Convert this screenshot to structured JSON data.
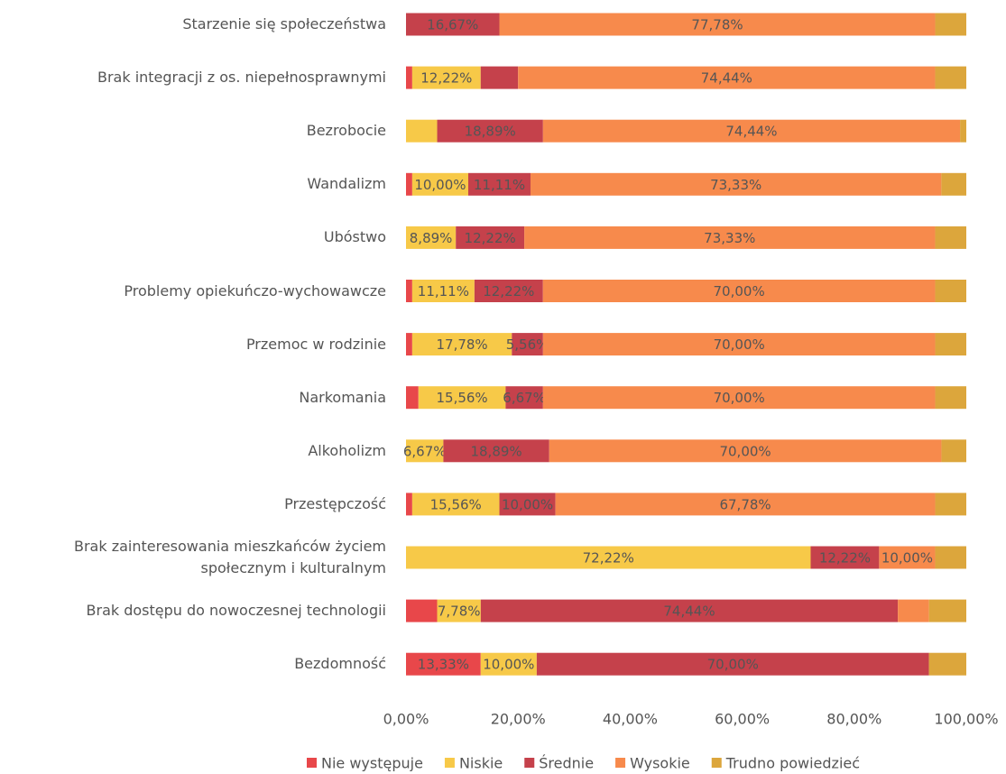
{
  "chart_data": {
    "type": "stacked_barh",
    "categories": [
      "Starzenie się społeczeństwa",
      "Brak integracji z os. niepełnosprawnymi",
      "Bezrobocie",
      "Wandalizm",
      "Ubóstwo",
      "Problemy opiekuńczo-wychowawcze",
      "Przemoc w rodzinie",
      "Narkomania",
      "Alkoholizm",
      "Przestępczość",
      "Brak zainteresowania mieszkańców życiem\nspołecznym i kulturalnym",
      "Brak dostępu do nowoczesnej technologii",
      "Bezdomność"
    ],
    "series": [
      {
        "name": "Nie występuje",
        "color": "#e8474a",
        "text_color": "#333",
        "values": [
          0,
          1.11,
          0,
          1.11,
          0,
          1.11,
          1.11,
          2.22,
          0,
          1.11,
          0,
          5.56,
          13.33
        ],
        "value_labels": [
          null,
          null,
          null,
          null,
          null,
          null,
          null,
          null,
          null,
          null,
          null,
          null,
          "13,33%"
        ]
      },
      {
        "name": "Niskie",
        "color": "#f7c948",
        "text_color": "#333",
        "values": [
          0,
          12.22,
          5.56,
          10.0,
          8.89,
          11.11,
          17.78,
          15.56,
          6.67,
          15.56,
          72.22,
          7.78,
          10.0
        ],
        "value_labels": [
          null,
          "12,22%",
          null,
          "10,00%",
          "8,89%",
          "11,11%",
          "17,78%",
          "15,56%",
          "6,67%",
          "15,56%",
          "72,22%",
          "7,78%",
          "10,00%"
        ]
      },
      {
        "name": "Średnie",
        "color": "#c5414b",
        "text_color": "#f3c6c9",
        "values": [
          16.67,
          6.67,
          18.89,
          11.11,
          12.22,
          12.22,
          5.56,
          6.67,
          18.89,
          10.0,
          12.22,
          74.44,
          70.0
        ],
        "value_labels": [
          "16,67%",
          null,
          "18,89%",
          "11,11%",
          "12,22%",
          "12,22%",
          "5,56%",
          "6,67%",
          "18,89%",
          "10,00%",
          "12,22%",
          "74,44%",
          "70,00%"
        ]
      },
      {
        "name": "Wysokie",
        "color": "#f78a4c",
        "text_color": "#333",
        "values": [
          77.78,
          74.44,
          74.44,
          73.33,
          73.33,
          70.0,
          70.0,
          70.0,
          70.0,
          67.78,
          10.0,
          5.56,
          0
        ],
        "value_labels": [
          "77,78%",
          "74,44%",
          "74,44%",
          "73,33%",
          "73,33%",
          "70,00%",
          "70,00%",
          "70,00%",
          "70,00%",
          "67,78%",
          "10,00%",
          null,
          null
        ]
      },
      {
        "name": "Trudno powiedzieć",
        "color": "#dca63c",
        "text_color": "#333",
        "values": [
          5.55,
          5.56,
          1.11,
          4.45,
          5.56,
          5.56,
          5.55,
          5.55,
          4.44,
          5.55,
          5.56,
          6.66,
          6.67
        ],
        "value_labels": [
          null,
          null,
          null,
          null,
          null,
          null,
          null,
          null,
          null,
          null,
          null,
          null,
          null
        ]
      }
    ],
    "xlim": [
      0,
      100
    ],
    "xticks": [
      {
        "value": 0,
        "label": "0,00%"
      },
      {
        "value": 20,
        "label": "20,00%"
      },
      {
        "value": 40,
        "label": "40,00%"
      },
      {
        "value": 60,
        "label": "60,00%"
      },
      {
        "value": 80,
        "label": "80,00%"
      },
      {
        "value": 100,
        "label": "100,00%"
      }
    ],
    "legend": "bottom"
  }
}
